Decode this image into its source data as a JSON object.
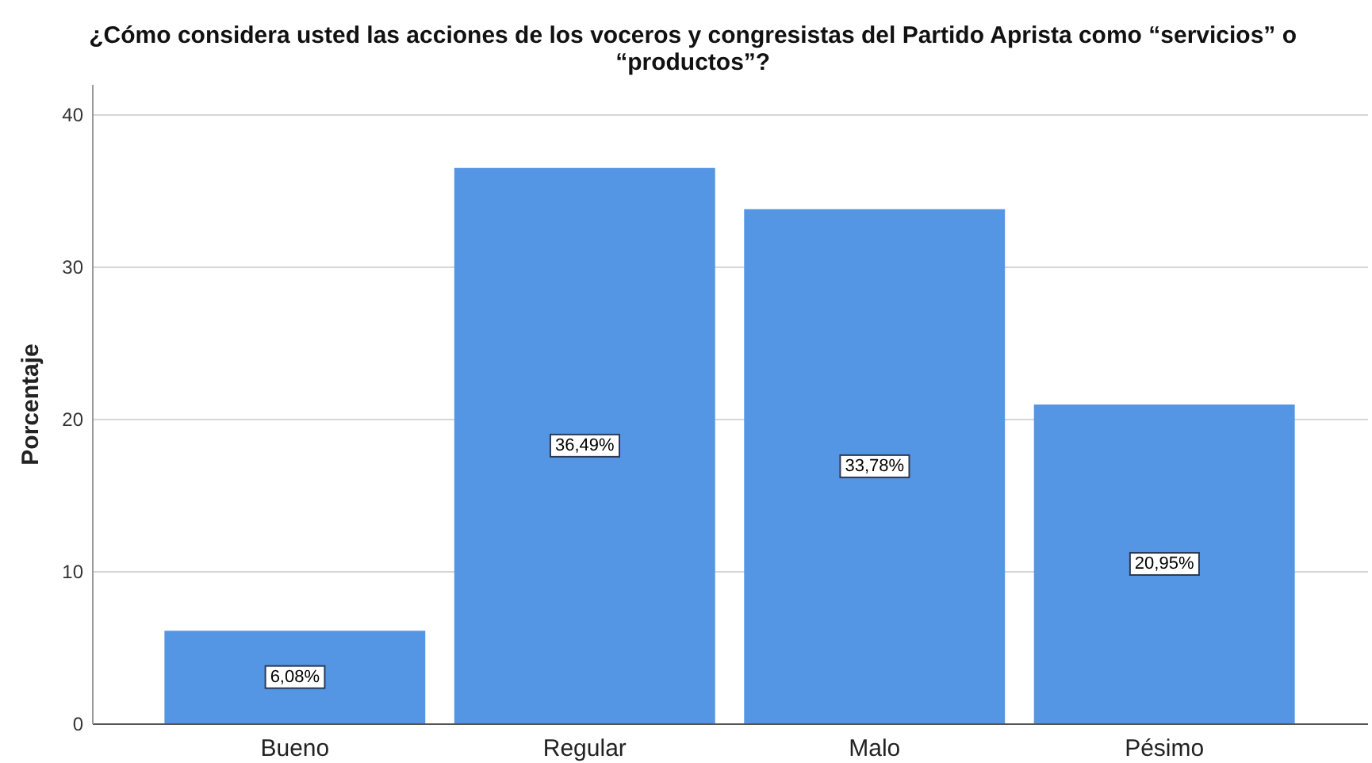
{
  "chart_data": {
    "type": "bar",
    "title": "¿Cómo considera usted las acciones de los voceros y congresistas del Partido Aprista como “servicios” o “productos”?",
    "ylabel": "Porcentaje",
    "categories": [
      "Bueno",
      "Regular",
      "Malo",
      "Pésimo"
    ],
    "values": [
      6.08,
      36.49,
      33.78,
      20.95
    ],
    "value_labels": [
      "6,08%",
      "36,49%",
      "33,78%",
      "20,95%"
    ],
    "color": "#5596e4",
    "ylim": [
      0,
      42
    ],
    "yticks": [
      0,
      10,
      20,
      30,
      40
    ],
    "grid": "y"
  }
}
